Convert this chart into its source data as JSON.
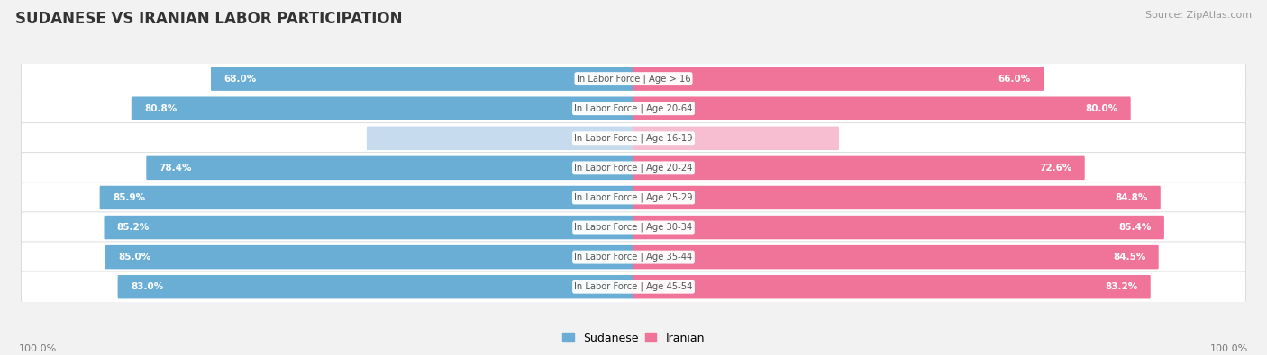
{
  "title": "SUDANESE VS IRANIAN LABOR PARTICIPATION",
  "source": "Source: ZipAtlas.com",
  "categories": [
    "In Labor Force | Age > 16",
    "In Labor Force | Age 20-64",
    "In Labor Force | Age 16-19",
    "In Labor Force | Age 20-24",
    "In Labor Force | Age 25-29",
    "In Labor Force | Age 30-34",
    "In Labor Force | Age 35-44",
    "In Labor Force | Age 45-54"
  ],
  "sudanese": [
    68.0,
    80.8,
    42.9,
    78.4,
    85.9,
    85.2,
    85.0,
    83.0
  ],
  "iranian": [
    66.0,
    80.0,
    33.0,
    72.6,
    84.8,
    85.4,
    84.5,
    83.2
  ],
  "sudanese_color": "#6aaed6",
  "sudanese_color_light": "#c6dcee",
  "iranian_color": "#f0739a",
  "iranian_color_light": "#f7bdd0",
  "label_white": "#ffffff",
  "label_dark": "#777777",
  "max_val": 100.0,
  "bg_color": "#f2f2f2",
  "row_bg_color": "#e8e8e8",
  "center_label_color": "#555555",
  "title_color": "#333333",
  "source_color": "#999999",
  "bottom_label_color": "#777777"
}
